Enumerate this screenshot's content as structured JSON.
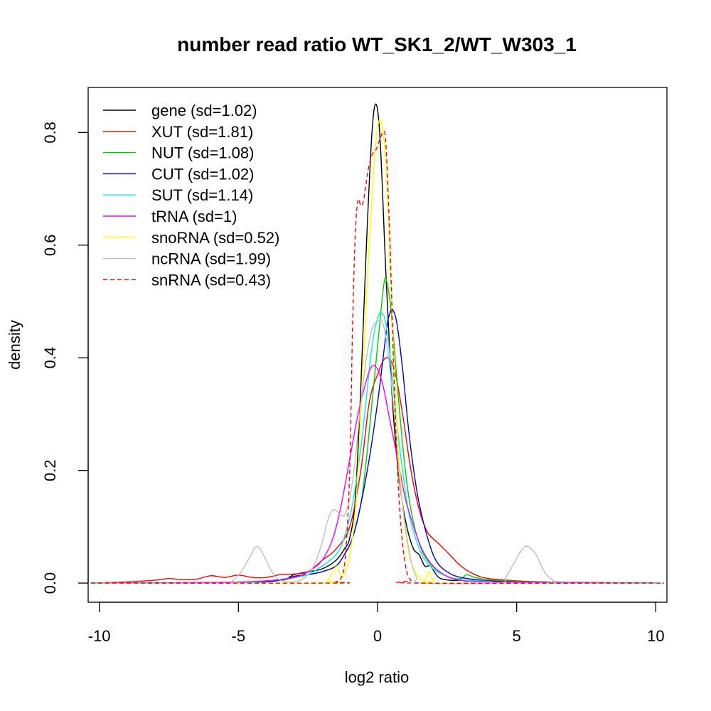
{
  "chart_data": {
    "type": "line",
    "title": "number read ratio WT_SK1_2/WT_W303_1",
    "xlabel": "log2 ratio",
    "ylabel": "density",
    "xlim": [
      -10.4,
      10.4
    ],
    "ylim": [
      -0.034,
      0.88
    ],
    "grid": false,
    "legend_position": "top-left",
    "xticks": [
      {
        "value": -10,
        "label": "-10"
      },
      {
        "value": -5,
        "label": "-5"
      },
      {
        "value": 0,
        "label": "0"
      },
      {
        "value": 5,
        "label": "5"
      },
      {
        "value": 10,
        "label": "10"
      }
    ],
    "yticks": [
      {
        "value": 0.0,
        "label": "0.0"
      },
      {
        "value": 0.2,
        "label": "0.2"
      },
      {
        "value": 0.4,
        "label": "0.4"
      },
      {
        "value": 0.6,
        "label": "0.6"
      },
      {
        "value": 0.8,
        "label": "0.8"
      }
    ],
    "series": [
      {
        "name": "gene (sd=1.02)",
        "color": "#000000",
        "dash": false,
        "points": [
          [
            -10.3,
            0
          ],
          [
            -5,
            0.001
          ],
          [
            -3.5,
            0.005
          ],
          [
            -3,
            0.015
          ],
          [
            -2.5,
            0.02
          ],
          [
            -2,
            0.025
          ],
          [
            -1.5,
            0.04
          ],
          [
            -1.2,
            0.06
          ],
          [
            -1,
            0.08
          ],
          [
            -0.8,
            0.15
          ],
          [
            -0.6,
            0.35
          ],
          [
            -0.4,
            0.6
          ],
          [
            -0.2,
            0.8
          ],
          [
            -0.05,
            0.85
          ],
          [
            0.1,
            0.78
          ],
          [
            0.3,
            0.55
          ],
          [
            0.5,
            0.35
          ],
          [
            0.7,
            0.22
          ],
          [
            0.9,
            0.14
          ],
          [
            1.1,
            0.09
          ],
          [
            1.3,
            0.06
          ],
          [
            1.5,
            0.05
          ],
          [
            1.7,
            0.03
          ],
          [
            1.9,
            0.03
          ],
          [
            2.2,
            0.01
          ],
          [
            2.6,
            0.005
          ],
          [
            3,
            0.005
          ],
          [
            4,
            0.004
          ],
          [
            5,
            0.002
          ],
          [
            7,
            0.001
          ],
          [
            10,
            0
          ]
        ]
      },
      {
        "name": "XUT (sd=1.81)",
        "color": "#ff0000",
        "dash": false,
        "points": [
          [
            -10.3,
            0
          ],
          [
            -9,
            0.002
          ],
          [
            -8,
            0.005
          ],
          [
            -7.5,
            0.008
          ],
          [
            -7,
            0.006
          ],
          [
            -6.5,
            0.007
          ],
          [
            -6,
            0.013
          ],
          [
            -5.5,
            0.01
          ],
          [
            -5,
            0.014
          ],
          [
            -4.5,
            0.01
          ],
          [
            -4,
            0.01
          ],
          [
            -3.5,
            0.015
          ],
          [
            -3,
            0.016
          ],
          [
            -2.5,
            0.02
          ],
          [
            -2,
            0.04
          ],
          [
            -1.5,
            0.06
          ],
          [
            -1,
            0.1
          ],
          [
            -0.6,
            0.2
          ],
          [
            -0.3,
            0.32
          ],
          [
            0,
            0.37
          ],
          [
            0.3,
            0.4
          ],
          [
            0.6,
            0.38
          ],
          [
            0.9,
            0.3
          ],
          [
            1.2,
            0.2
          ],
          [
            1.5,
            0.13
          ],
          [
            1.8,
            0.09
          ],
          [
            2.2,
            0.07
          ],
          [
            2.6,
            0.05
          ],
          [
            3,
            0.03
          ],
          [
            3.5,
            0.015
          ],
          [
            4,
            0.008
          ],
          [
            5,
            0.004
          ],
          [
            6,
            0.002
          ],
          [
            7,
            0.001
          ],
          [
            10,
            0
          ]
        ]
      },
      {
        "name": "NUT (sd=1.08)",
        "color": "#00cc00",
        "dash": false,
        "points": [
          [
            -10.3,
            0
          ],
          [
            -5,
            0.001
          ],
          [
            -3.5,
            0.005
          ],
          [
            -3,
            0.01
          ],
          [
            -2.5,
            0.015
          ],
          [
            -2,
            0.02
          ],
          [
            -1.5,
            0.03
          ],
          [
            -1.2,
            0.05
          ],
          [
            -0.9,
            0.08
          ],
          [
            -0.6,
            0.14
          ],
          [
            -0.4,
            0.22
          ],
          [
            -0.2,
            0.32
          ],
          [
            0,
            0.42
          ],
          [
            0.2,
            0.52
          ],
          [
            0.3,
            0.54
          ],
          [
            0.45,
            0.5
          ],
          [
            0.6,
            0.42
          ],
          [
            0.8,
            0.3
          ],
          [
            1,
            0.2
          ],
          [
            1.2,
            0.13
          ],
          [
            1.5,
            0.07
          ],
          [
            1.8,
            0.04
          ],
          [
            2.2,
            0.02
          ],
          [
            2.6,
            0.01
          ],
          [
            3,
            0.008
          ],
          [
            3.2,
            0.015
          ],
          [
            3.5,
            0.01
          ],
          [
            4,
            0.006
          ],
          [
            5,
            0.003
          ],
          [
            6,
            0.002
          ],
          [
            7,
            0.001
          ],
          [
            10,
            0
          ]
        ]
      },
      {
        "name": "CUT (sd=1.02)",
        "color": "#0000cc",
        "dash": false,
        "points": [
          [
            -10.3,
            0
          ],
          [
            -5,
            0.001
          ],
          [
            -3.5,
            0.005
          ],
          [
            -3,
            0.012
          ],
          [
            -2.5,
            0.015
          ],
          [
            -2,
            0.02
          ],
          [
            -1.5,
            0.03
          ],
          [
            -1.2,
            0.05
          ],
          [
            -0.9,
            0.08
          ],
          [
            -0.6,
            0.14
          ],
          [
            -0.3,
            0.22
          ],
          [
            0,
            0.32
          ],
          [
            0.2,
            0.4
          ],
          [
            0.35,
            0.46
          ],
          [
            0.45,
            0.48
          ],
          [
            0.55,
            0.485
          ],
          [
            0.7,
            0.46
          ],
          [
            0.9,
            0.38
          ],
          [
            1.1,
            0.28
          ],
          [
            1.3,
            0.2
          ],
          [
            1.5,
            0.14
          ],
          [
            1.8,
            0.08
          ],
          [
            2.1,
            0.04
          ],
          [
            2.5,
            0.02
          ],
          [
            3,
            0.01
          ],
          [
            4,
            0.004
          ],
          [
            5,
            0.002
          ],
          [
            7,
            0.001
          ],
          [
            10,
            0
          ]
        ]
      },
      {
        "name": "SUT (sd=1.14)",
        "color": "#00eeee",
        "dash": false,
        "points": [
          [
            -10.3,
            0
          ],
          [
            -5,
            0.001
          ],
          [
            -4,
            0.004
          ],
          [
            -3,
            0.01
          ],
          [
            -2.5,
            0.015
          ],
          [
            -2,
            0.03
          ],
          [
            -1.5,
            0.05
          ],
          [
            -1.2,
            0.08
          ],
          [
            -0.9,
            0.14
          ],
          [
            -0.6,
            0.24
          ],
          [
            -0.4,
            0.33
          ],
          [
            -0.2,
            0.42
          ],
          [
            0,
            0.47
          ],
          [
            0.15,
            0.48
          ],
          [
            0.3,
            0.46
          ],
          [
            0.5,
            0.38
          ],
          [
            0.7,
            0.28
          ],
          [
            0.9,
            0.2
          ],
          [
            1.1,
            0.13
          ],
          [
            1.3,
            0.09
          ],
          [
            1.6,
            0.05
          ],
          [
            2,
            0.025
          ],
          [
            2.5,
            0.012
          ],
          [
            3,
            0.006
          ],
          [
            4,
            0.003
          ],
          [
            5,
            0.001
          ],
          [
            10,
            0
          ]
        ]
      },
      {
        "name": "tRNA (sd=1)",
        "color": "#ff00ff",
        "dash": false,
        "points": [
          [
            -10.3,
            0
          ],
          [
            -6,
            0.001
          ],
          [
            -4,
            0.004
          ],
          [
            -3,
            0.01
          ],
          [
            -2.5,
            0.02
          ],
          [
            -2,
            0.04
          ],
          [
            -1.6,
            0.08
          ],
          [
            -1.3,
            0.14
          ],
          [
            -1,
            0.22
          ],
          [
            -0.7,
            0.3
          ],
          [
            -0.4,
            0.36
          ],
          [
            -0.2,
            0.385
          ],
          [
            0,
            0.38
          ],
          [
            0.2,
            0.35
          ],
          [
            0.4,
            0.3
          ],
          [
            0.6,
            0.25
          ],
          [
            0.8,
            0.2
          ],
          [
            1,
            0.15
          ],
          [
            1.3,
            0.1
          ],
          [
            1.6,
            0.06
          ],
          [
            2,
            0.03
          ],
          [
            2.5,
            0.012
          ],
          [
            3,
            0.005
          ],
          [
            4,
            0.002
          ],
          [
            10,
            0
          ]
        ]
      },
      {
        "name": "snoRNA (sd=0.52)",
        "color": "#ffff00",
        "dash": false,
        "points": [
          [
            -10.3,
            0
          ],
          [
            -2,
            0
          ],
          [
            -1.8,
            0.005
          ],
          [
            -1.6,
            0.02
          ],
          [
            -1.45,
            0.03
          ],
          [
            -1.3,
            0.01
          ],
          [
            -1.15,
            0.02
          ],
          [
            -1,
            0.05
          ],
          [
            -0.85,
            0.1
          ],
          [
            -0.7,
            0.2
          ],
          [
            -0.5,
            0.4
          ],
          [
            -0.3,
            0.6
          ],
          [
            -0.1,
            0.76
          ],
          [
            0.05,
            0.82
          ],
          [
            0.2,
            0.8
          ],
          [
            0.35,
            0.7
          ],
          [
            0.5,
            0.5
          ],
          [
            0.7,
            0.28
          ],
          [
            0.9,
            0.14
          ],
          [
            1.1,
            0.06
          ],
          [
            1.3,
            0.025
          ],
          [
            1.5,
            0.01
          ],
          [
            1.7,
            0.005
          ],
          [
            1.85,
            0.02
          ],
          [
            2,
            0.005
          ],
          [
            2.3,
            0
          ],
          [
            10.3,
            0
          ]
        ]
      },
      {
        "name": "ncRNA (sd=1.99)",
        "color": "#bebebe",
        "dash": false,
        "points": [
          [
            -10.3,
            0
          ],
          [
            -5.5,
            0
          ],
          [
            -5.2,
            0.005
          ],
          [
            -4.9,
            0.02
          ],
          [
            -4.6,
            0.045
          ],
          [
            -4.35,
            0.065
          ],
          [
            -4.1,
            0.05
          ],
          [
            -3.8,
            0.02
          ],
          [
            -3.5,
            0.005
          ],
          [
            -3,
            0.002
          ],
          [
            -2.6,
            0.01
          ],
          [
            -2.3,
            0.03
          ],
          [
            -2,
            0.07
          ],
          [
            -1.8,
            0.11
          ],
          [
            -1.6,
            0.13
          ],
          [
            -1.4,
            0.125
          ],
          [
            -1.2,
            0.12
          ],
          [
            -1,
            0.15
          ],
          [
            -0.8,
            0.22
          ],
          [
            -0.6,
            0.32
          ],
          [
            -0.4,
            0.4
          ],
          [
            -0.2,
            0.45
          ],
          [
            0,
            0.465
          ],
          [
            0.2,
            0.46
          ],
          [
            0.4,
            0.4
          ],
          [
            0.6,
            0.3
          ],
          [
            0.8,
            0.18
          ],
          [
            1,
            0.1
          ],
          [
            1.2,
            0.04
          ],
          [
            1.4,
            0.01
          ],
          [
            1.6,
            0
          ],
          [
            4.3,
            0
          ],
          [
            4.6,
            0.01
          ],
          [
            4.9,
            0.035
          ],
          [
            5.2,
            0.06
          ],
          [
            5.4,
            0.065
          ],
          [
            5.7,
            0.05
          ],
          [
            6,
            0.02
          ],
          [
            6.3,
            0.005
          ],
          [
            6.6,
            0
          ],
          [
            10.3,
            0
          ]
        ]
      },
      {
        "name": "snRNA (sd=0.43)",
        "color": "#ff0000",
        "dash": true,
        "points": [
          [
            -10.3,
            0
          ],
          [
            -1.7,
            0
          ],
          [
            -1.5,
            0.002
          ],
          [
            -1.3,
            0.01
          ],
          [
            -1.15,
            0.05
          ],
          [
            -1,
            0.2
          ],
          [
            -0.9,
            0.45
          ],
          [
            -0.8,
            0.62
          ],
          [
            -0.7,
            0.68
          ],
          [
            -0.6,
            0.67
          ],
          [
            -0.5,
            0.68
          ],
          [
            -0.35,
            0.73
          ],
          [
            -0.2,
            0.76
          ],
          [
            -0.05,
            0.77
          ],
          [
            0.1,
            0.79
          ],
          [
            0.2,
            0.8
          ],
          [
            0.3,
            0.78
          ],
          [
            0.45,
            0.6
          ],
          [
            0.6,
            0.35
          ],
          [
            0.75,
            0.17
          ],
          [
            0.9,
            0.07
          ],
          [
            1.05,
            0.02
          ],
          [
            1.2,
            0.005
          ],
          [
            1.4,
            0
          ],
          [
            10.3,
            0
          ]
        ]
      }
    ]
  }
}
